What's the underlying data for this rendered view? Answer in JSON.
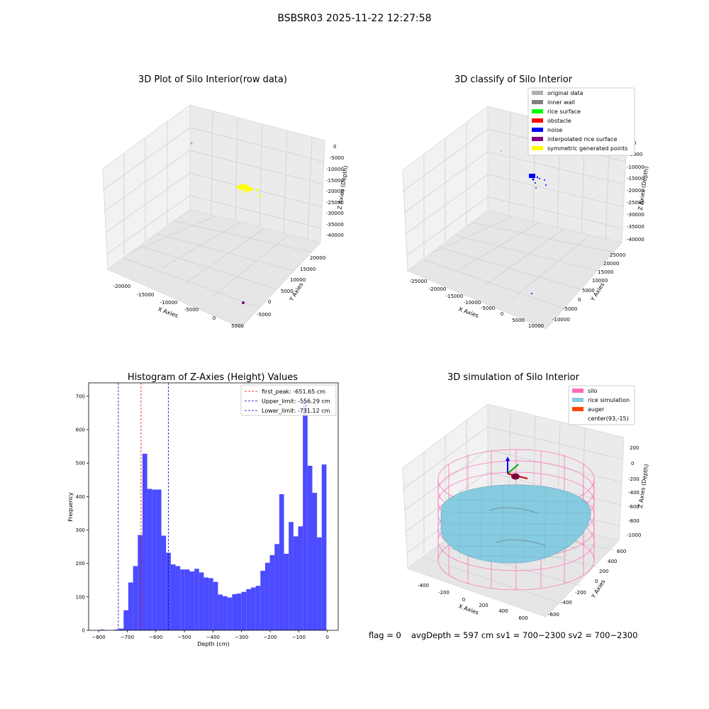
{
  "suptitle": "BSBSR03 2025-11-22 12:27:58",
  "footer": {
    "flag": "flag = 0",
    "stats": "avgDepth = 597 cm  sv1 = 700~2300  sv2 = 700~2300"
  },
  "colors": {
    "pane": "#f2f2f2",
    "grid": "#cccccc",
    "histogram_bar": "#4b4bff",
    "first_peak_line": "#ff0000",
    "limit_lines": "#0000c8",
    "silo": "#ff69b4",
    "rice": "#87cbe0",
    "auger": "#ff4500"
  },
  "chart_data": [
    {
      "type": "scatter",
      "title": "3D Plot of Silo Interior(row data)",
      "xlabel": "X Axies",
      "ylabel": "Y Axies",
      "zlabel": "Z Axies (Depth)",
      "xticks": [
        "-20000",
        "-15000",
        "-10000",
        "-5000",
        "0",
        "5000"
      ],
      "yticks": [
        "-5000",
        "0",
        "5000",
        "10000",
        "15000",
        "20000"
      ],
      "zticks": [
        "0",
        "-5000",
        "-10000",
        "-15000",
        "-20000",
        "-25000",
        "-30000",
        "-35000",
        "-40000"
      ],
      "xlim": [
        -22000,
        5000
      ],
      "ylim": [
        -7000,
        22000
      ],
      "zlim": [
        -40000,
        0
      ],
      "clusters": [
        {
          "color": "#ffff00",
          "x": -3000,
          "y": 5000,
          "z": -18000
        },
        {
          "color": "#800080",
          "x": 3500,
          "y": -5500,
          "z": -38000
        },
        {
          "color": "#b0b0b0",
          "x": -21000,
          "y": 20000,
          "z": -1000
        }
      ]
    },
    {
      "type": "scatter",
      "title": "3D classify of Silo Interior",
      "xlabel": "X Axies",
      "ylabel": "Y Axies",
      "zlabel": "Z Axies (Depth)",
      "xticks": [
        "-25000",
        "-20000",
        "-15000",
        "-10000",
        "-5000",
        "0",
        "5000",
        "10000"
      ],
      "yticks": [
        "-10000",
        "-5000",
        "0",
        "5000",
        "10000",
        "15000",
        "20000",
        "25000"
      ],
      "zticks": [
        "0",
        "-5000",
        "-10000",
        "-15000",
        "-20000",
        "-25000",
        "-30000",
        "-35000",
        "-40000"
      ],
      "legend_loc": "upper right",
      "legend": [
        {
          "label": "original data",
          "color": "#b0b0b0"
        },
        {
          "label": "inner wall",
          "color": "#808080"
        },
        {
          "label": "rice surface",
          "color": "#00ff00"
        },
        {
          "label": "obstacle",
          "color": "#ff0000"
        },
        {
          "label": "noise",
          "color": "#0000ff"
        },
        {
          "label": "interpolated rice surface",
          "color": "#800080"
        },
        {
          "label": "symmetric generated points",
          "color": "#ffff00"
        }
      ]
    },
    {
      "type": "bar",
      "title": "Histogram of Z-Axies (Height) Values",
      "xlabel": "Depth (cm)",
      "ylabel": "Frequency",
      "xlim": [
        -835,
        38
      ],
      "ylim": [
        0,
        740
      ],
      "xticks": [
        -800,
        -700,
        -600,
        -500,
        -400,
        -300,
        -200,
        -100,
        0
      ],
      "yticks": [
        0,
        100,
        200,
        300,
        400,
        500,
        600,
        700
      ],
      "bin_width": 16.5,
      "bin_starts": [
        -795.1,
        -778.6,
        -762.1,
        -745.6,
        -729.1,
        -712.6,
        -696.1,
        -679.6,
        -663.1,
        -646.6,
        -630.1,
        -613.6,
        -597.1,
        -580.6,
        -564.1,
        -547.6,
        -531.1,
        -514.6,
        -498.1,
        -481.6,
        -465.1,
        -448.6,
        -432.1,
        -415.6,
        -399.1,
        -382.6,
        -366.1,
        -349.6,
        -333.1,
        -316.6,
        -300.1,
        -283.6,
        -267.1,
        -250.6,
        -234.1,
        -217.6,
        -201.1,
        -184.6,
        -168.1,
        -151.6,
        -135.1,
        -118.6,
        -102.1,
        -85.6,
        -69.1,
        -52.6,
        -36.1,
        -19.6
      ],
      "values": [
        2,
        0,
        0,
        2,
        5,
        60,
        143,
        192,
        285,
        528,
        423,
        421,
        421,
        283,
        232,
        197,
        192,
        182,
        182,
        176,
        184,
        173,
        158,
        156,
        145,
        107,
        102,
        98,
        108,
        110,
        115,
        123,
        128,
        133,
        178,
        202,
        225,
        258,
        407,
        229,
        324,
        281,
        311,
        688,
        492,
        411,
        278,
        496
      ],
      "legend_loc": "upper right",
      "vlines": [
        {
          "label": "first_peak: -651.65 cm",
          "x": -651.65,
          "color": "#ff0000"
        },
        {
          "label": "Upper_limit: -556.29 cm",
          "x": -556.29,
          "color": "#0000c8"
        },
        {
          "label": "Lower_limit: -731.12 cm",
          "x": -731.12,
          "color": "#0000c8"
        }
      ]
    },
    {
      "type": "area",
      "title": "3D simulation of Silo Interior",
      "xlabel": "X Axies",
      "ylabel": "Y Axies",
      "zlabel": "Z Axies (Depth)",
      "xticks": [
        "-400",
        "-200",
        "0",
        "200",
        "400",
        "600"
      ],
      "yticks": [
        "-600",
        "-400",
        "-200",
        "0",
        "200",
        "400",
        "600"
      ],
      "zticks": [
        "200",
        "0",
        "-200",
        "-400",
        "-600",
        "-800",
        "-1000"
      ],
      "legend_loc": "upper right",
      "legend": [
        {
          "label": "silo",
          "color": "#ff69b4"
        },
        {
          "label": "rice simulation",
          "color": "#87cbe0"
        },
        {
          "label": "auger",
          "color": "#ff4500"
        },
        {
          "label": "center(93,-15)",
          "color": "none"
        }
      ]
    }
  ]
}
